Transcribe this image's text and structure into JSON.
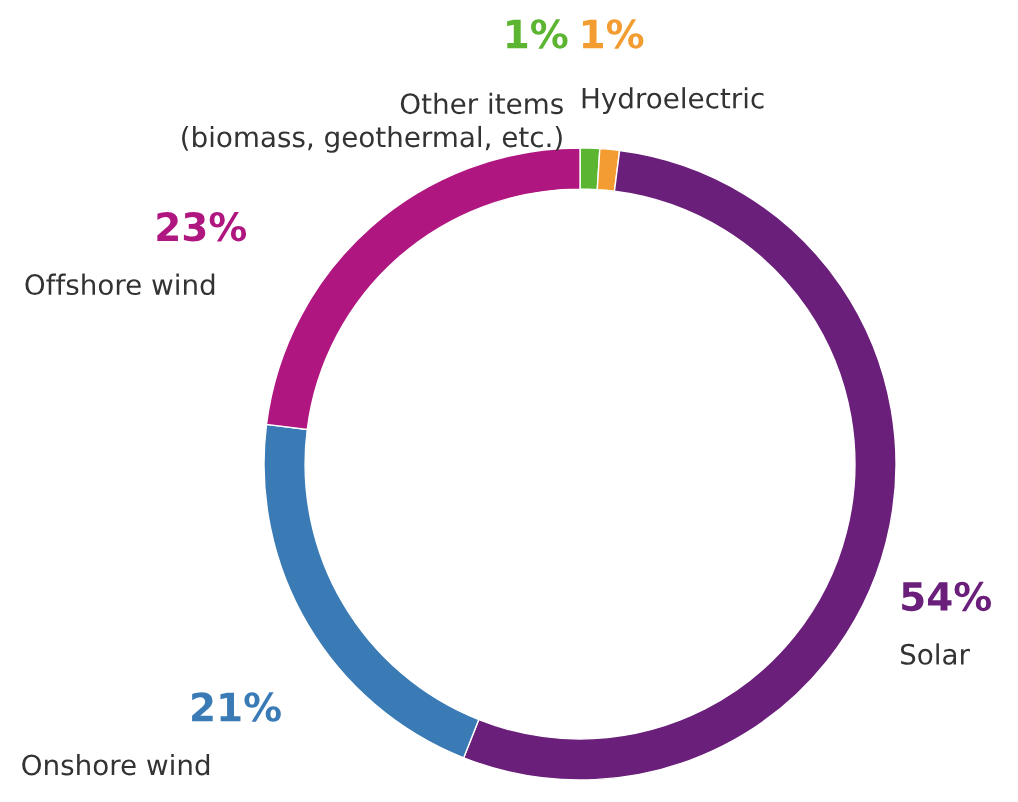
{
  "chart_data": {
    "type": "donut",
    "categories": [
      "Other items\n(biomass, geothermal, etc.)",
      "Hydroelectric",
      "Solar",
      "Onshore wind",
      "Offshore wind"
    ],
    "values": [
      1,
      1,
      54,
      21,
      23
    ],
    "value_labels": [
      "1%",
      "1%",
      "54%",
      "21%",
      "23%"
    ],
    "colors": [
      "#5cb531",
      "#f39c32",
      "#6a1f7a",
      "#3a7bb5",
      "#b0167f"
    ],
    "legend": false
  }
}
